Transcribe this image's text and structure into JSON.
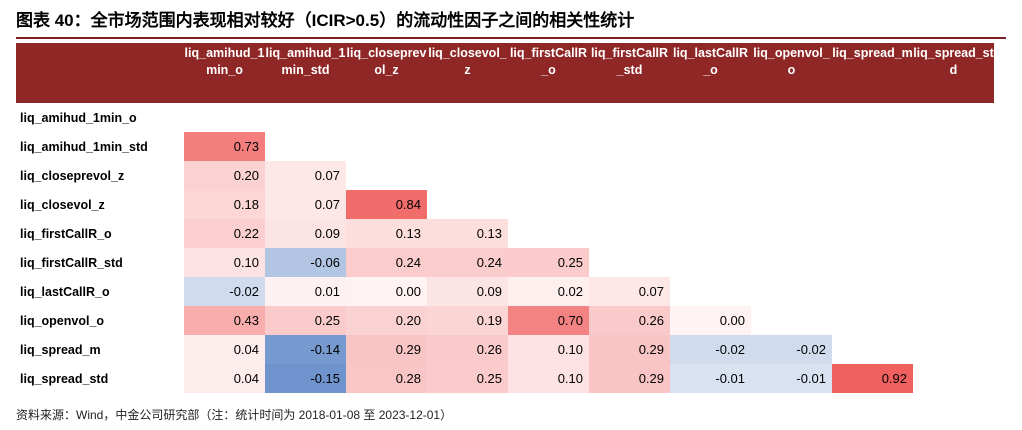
{
  "title": "图表 40：全市场范围内表现相对较好（ICIR>0.5）的流动性因子之间的相关性统计",
  "note": "资料来源：Wind，中金公司研究部（注：统计时间为 2018-01-08 至 2023-12-01）",
  "colors": {
    "header_bg": "#8f2727",
    "header_text": "#ffffff",
    "positive": "#f0605f",
    "negative": "#6f93cc"
  },
  "chart_data": {
    "type": "table",
    "title": "图表 40：全市场范围内表现相对较好（ICIR>0.5）的流动性因子之间的相关性统计",
    "columns": [
      "liq_amihud_1min_o",
      "liq_amihud_1min_std",
      "liq_closeprevol_z",
      "liq_closevol_z",
      "liq_firstCallR_o",
      "liq_firstCallR_std",
      "liq_lastCallR_o",
      "liq_openvol_o",
      "liq_spread_m",
      "liq_spread_std"
    ],
    "rows": [
      {
        "label": "liq_amihud_1min_o",
        "values": []
      },
      {
        "label": "liq_amihud_1min_std",
        "values": [
          0.73
        ]
      },
      {
        "label": "liq_closeprevol_z",
        "values": [
          0.2,
          0.07
        ]
      },
      {
        "label": "liq_closevol_z",
        "values": [
          0.18,
          0.07,
          0.84
        ]
      },
      {
        "label": "liq_firstCallR_o",
        "values": [
          0.22,
          0.09,
          0.13,
          0.13
        ]
      },
      {
        "label": "liq_firstCallR_std",
        "values": [
          0.1,
          -0.06,
          0.24,
          0.24,
          0.25
        ]
      },
      {
        "label": "liq_lastCallR_o",
        "values": [
          -0.02,
          0.01,
          0.0,
          0.09,
          0.02,
          0.07
        ]
      },
      {
        "label": "liq_openvol_o",
        "values": [
          0.43,
          0.25,
          0.2,
          0.19,
          0.7,
          0.26,
          0.0
        ]
      },
      {
        "label": "liq_spread_m",
        "values": [
          0.04,
          -0.14,
          0.29,
          0.26,
          0.1,
          0.29,
          -0.02,
          -0.02
        ]
      },
      {
        "label": "liq_spread_std",
        "values": [
          0.04,
          -0.15,
          0.28,
          0.25,
          0.1,
          0.29,
          -0.01,
          -0.01,
          0.92
        ]
      }
    ]
  }
}
